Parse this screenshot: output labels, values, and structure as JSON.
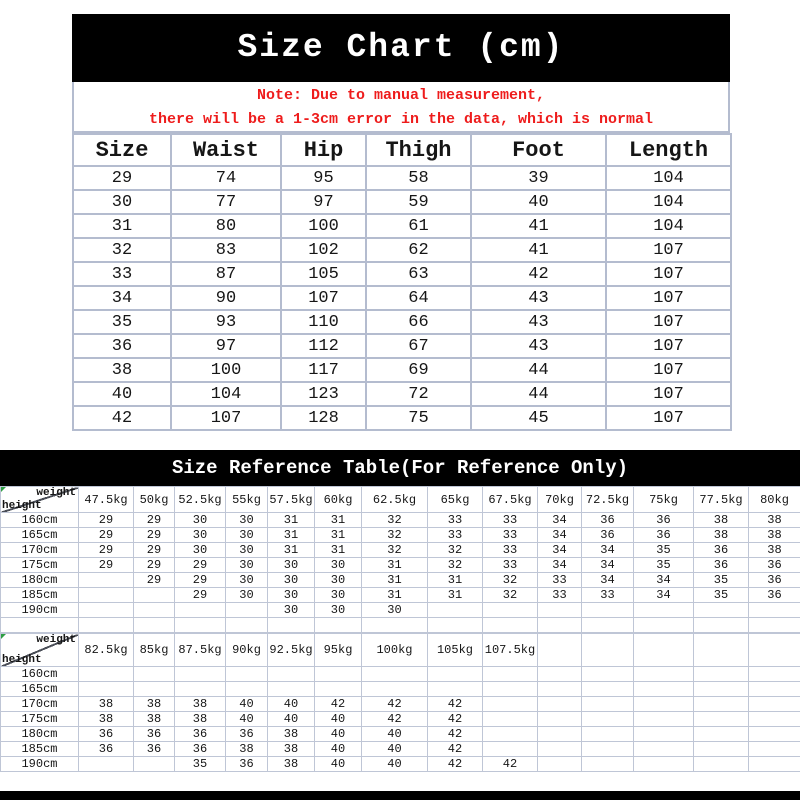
{
  "size_chart": {
    "title": "Size Chart (cm)",
    "note_line1": "Note: Due to manual measurement,",
    "note_line2": "there will be a 1-3cm error in the data, which is normal",
    "columns": [
      "Size",
      "Waist",
      "Hip",
      "Thigh",
      "Foot",
      "Length"
    ],
    "rows": [
      [
        "29",
        "74",
        "95",
        "58",
        "39",
        "104"
      ],
      [
        "30",
        "77",
        "97",
        "59",
        "40",
        "104"
      ],
      [
        "31",
        "80",
        "100",
        "61",
        "41",
        "104"
      ],
      [
        "32",
        "83",
        "102",
        "62",
        "41",
        "107"
      ],
      [
        "33",
        "87",
        "105",
        "63",
        "42",
        "107"
      ],
      [
        "34",
        "90",
        "107",
        "64",
        "43",
        "107"
      ],
      [
        "35",
        "93",
        "110",
        "66",
        "43",
        "107"
      ],
      [
        "36",
        "97",
        "112",
        "67",
        "43",
        "107"
      ],
      [
        "38",
        "100",
        "117",
        "69",
        "44",
        "107"
      ],
      [
        "40",
        "104",
        "123",
        "72",
        "44",
        "107"
      ],
      [
        "42",
        "107",
        "128",
        "75",
        "45",
        "107"
      ]
    ]
  },
  "reference_table": {
    "title": "Size Reference Table(For Reference Only)",
    "corner": {
      "top_label": "weight",
      "bottom_label": "height"
    },
    "matrix1": {
      "weights": [
        "47.5kg",
        "50kg",
        "52.5kg",
        "55kg",
        "57.5kg",
        "60kg",
        "62.5kg",
        "65kg",
        "67.5kg",
        "70kg",
        "72.5kg",
        "75kg",
        "77.5kg",
        "80kg"
      ],
      "heights": [
        "160cm",
        "165cm",
        "170cm",
        "175cm",
        "180cm",
        "185cm",
        "190cm"
      ],
      "cells": [
        [
          "29",
          "29",
          "30",
          "30",
          "31",
          "31",
          "32",
          "33",
          "33",
          "34",
          "36",
          "36",
          "38",
          "38"
        ],
        [
          "29",
          "29",
          "30",
          "30",
          "31",
          "31",
          "32",
          "33",
          "33",
          "34",
          "36",
          "36",
          "38",
          "38"
        ],
        [
          "29",
          "29",
          "30",
          "30",
          "31",
          "31",
          "32",
          "32",
          "33",
          "34",
          "34",
          "35",
          "36",
          "38"
        ],
        [
          "29",
          "29",
          "29",
          "30",
          "30",
          "30",
          "31",
          "32",
          "33",
          "34",
          "34",
          "35",
          "36",
          "36"
        ],
        [
          "",
          "29",
          "29",
          "30",
          "30",
          "30",
          "31",
          "31",
          "32",
          "33",
          "34",
          "34",
          "35",
          "36"
        ],
        [
          "",
          "",
          "29",
          "30",
          "30",
          "30",
          "31",
          "31",
          "32",
          "33",
          "33",
          "34",
          "35",
          "36"
        ],
        [
          "",
          "",
          "",
          "",
          "30",
          "30",
          "30",
          "",
          "",
          "",
          "",
          "",
          "",
          ""
        ]
      ],
      "has_trailing_spacer_row": true
    },
    "matrix2": {
      "weights": [
        "82.5kg",
        "85kg",
        "87.5kg",
        "90kg",
        "92.5kg",
        "95kg",
        "100kg",
        "105kg",
        "107.5kg",
        "",
        "",
        "",
        "",
        ""
      ],
      "heights": [
        "160cm",
        "165cm",
        "170cm",
        "175cm",
        "180cm",
        "185cm",
        "190cm"
      ],
      "cells": [
        [
          "",
          "",
          "",
          "",
          "",
          "",
          "",
          "",
          "",
          "",
          "",
          "",
          "",
          ""
        ],
        [
          "",
          "",
          "",
          "",
          "",
          "",
          "",
          "",
          "",
          "",
          "",
          "",
          "",
          ""
        ],
        [
          "38",
          "38",
          "38",
          "40",
          "40",
          "42",
          "42",
          "42",
          "",
          "",
          "",
          "",
          "",
          ""
        ],
        [
          "38",
          "38",
          "38",
          "40",
          "40",
          "40",
          "42",
          "42",
          "",
          "",
          "",
          "",
          "",
          ""
        ],
        [
          "36",
          "36",
          "36",
          "36",
          "38",
          "40",
          "40",
          "42",
          "",
          "",
          "",
          "",
          "",
          ""
        ],
        [
          "36",
          "36",
          "36",
          "38",
          "38",
          "40",
          "40",
          "42",
          "",
          "",
          "",
          "",
          "",
          ""
        ],
        [
          "",
          "",
          "35",
          "36",
          "38",
          "40",
          "40",
          "42",
          "42",
          "",
          "",
          "",
          "",
          ""
        ]
      ],
      "has_trailing_spacer_row": false
    }
  },
  "colors": {
    "title_bar_bg": "#000000",
    "title_text": "#ffffff",
    "note_text": "#ee1c1c",
    "grid_line_top_table": "#b4bccf",
    "grid_line_ref_table": "#bfc6d6",
    "corner_marker_green": "#2f9e44"
  }
}
